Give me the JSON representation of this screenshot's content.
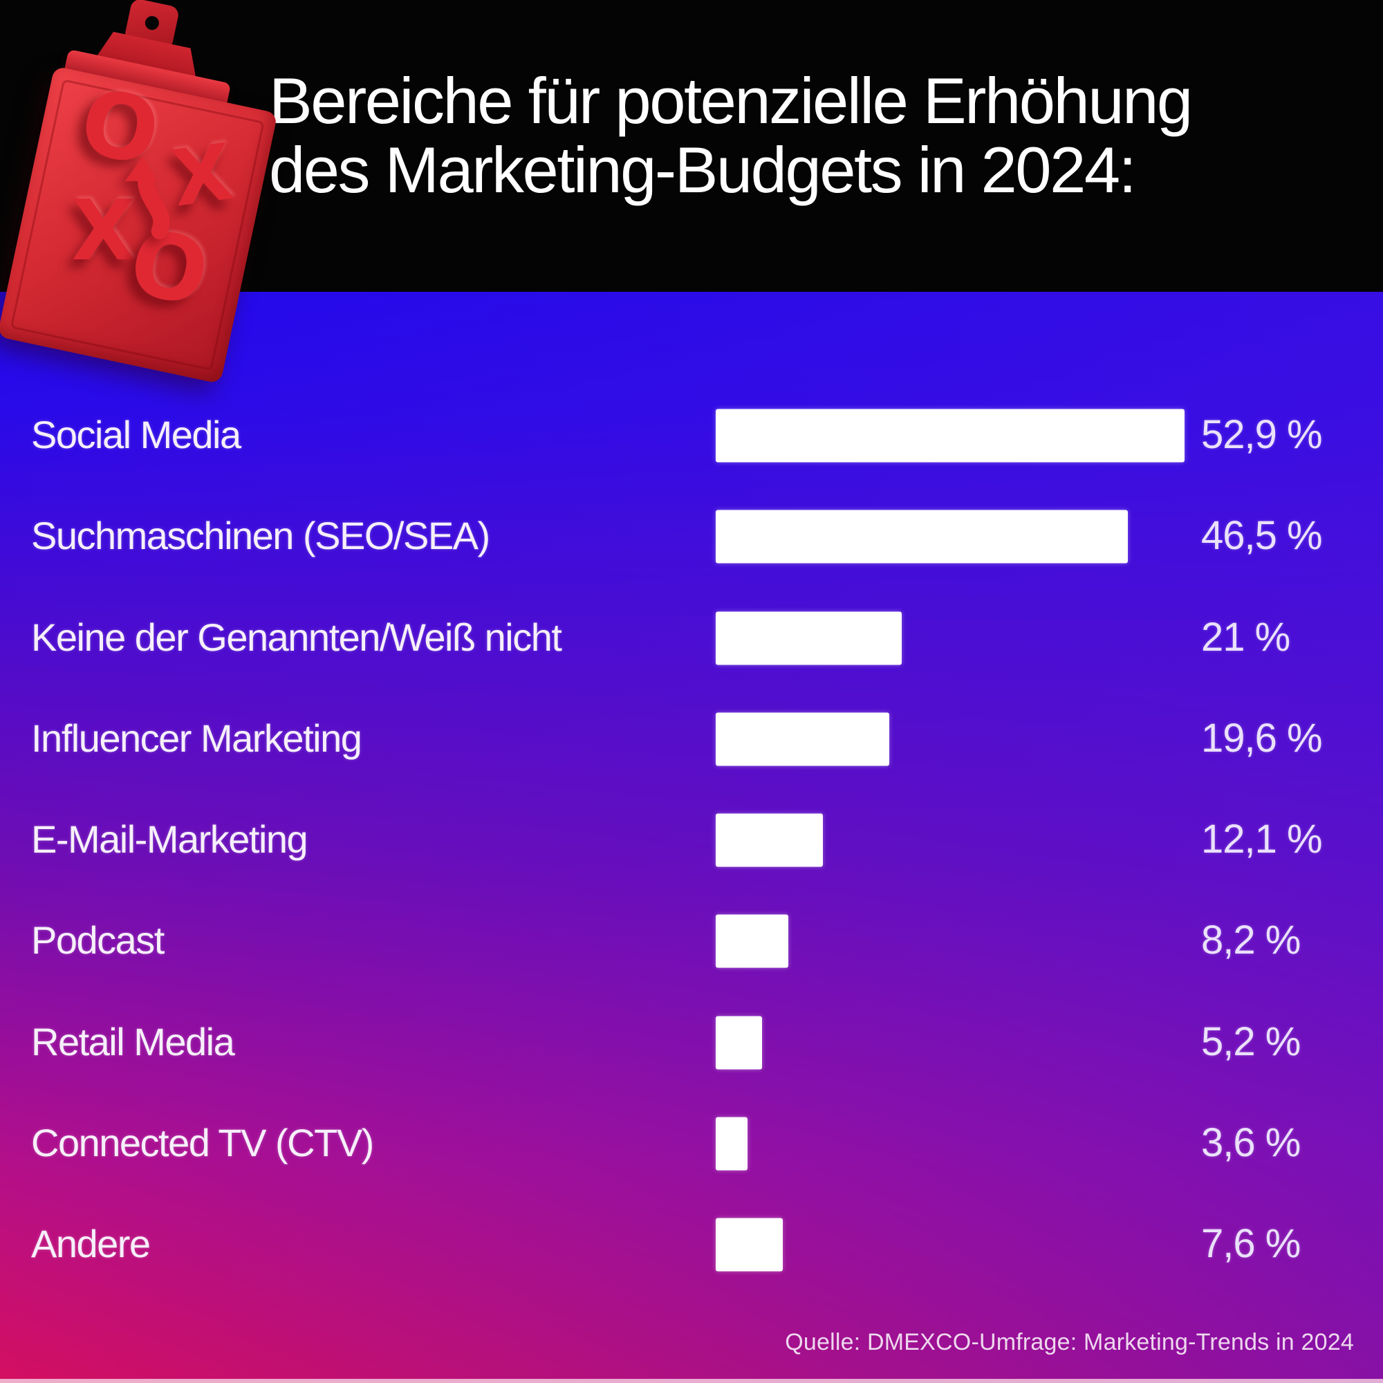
{
  "page": {
    "title_line1": "Bereiche für potenzielle Erhöhung",
    "title_line2": "des Marketing-Budgets in 2024:",
    "source": "Quelle: DMEXCO-Umfrage: Marketing-Trends in 2024"
  },
  "chart_data": {
    "type": "bar",
    "orientation": "horizontal",
    "title": "Bereiche für potenzielle Erhöhung des Marketing-Budgets in 2024:",
    "categories": [
      "Social Media",
      "Suchmaschinen (SEO/SEA)",
      "Keine der Genannten/Weiß nicht",
      "Influencer Marketing",
      "E-Mail-Marketing",
      "Podcast",
      "Retail Media",
      "Connected TV (CTV)",
      "Andere"
    ],
    "values": [
      52.9,
      46.5,
      21,
      19.6,
      12.1,
      8.2,
      5.2,
      3.6,
      7.6
    ],
    "value_labels": [
      "52,9 %",
      "46,5 %",
      "21 %",
      "19,6 %",
      "12,1 %",
      "8,2 %",
      "5,2 %",
      "3,6 %",
      "7,6 %"
    ],
    "unit": "%",
    "xlim": [
      0,
      56
    ],
    "grid": false,
    "legend": false,
    "bar_color": "#ffffff",
    "source": "Quelle: DMEXCO-Umfrage: Marketing-Trends in 2024"
  },
  "colors": {
    "title_band": "#040404",
    "title_text": "#ffffff",
    "gradient_top_left": "#0b06f5",
    "gradient_top_right": "#4912dd",
    "gradient_bottom_left": "#d40f60",
    "gradient_bottom_right": "#a30fb5",
    "bar": "#ffffff",
    "category_text": "#f6effa",
    "value_text": "#eae1fb",
    "source_text": "#eed7ee",
    "clipboard_red": "#d62b34",
    "clipboard_symbol_red": "#e02833"
  },
  "decor": {
    "clipboard": "red strategy clipboard with X/O play symbols and up arrow",
    "glyph_o": "O",
    "glyph_x": "X"
  }
}
